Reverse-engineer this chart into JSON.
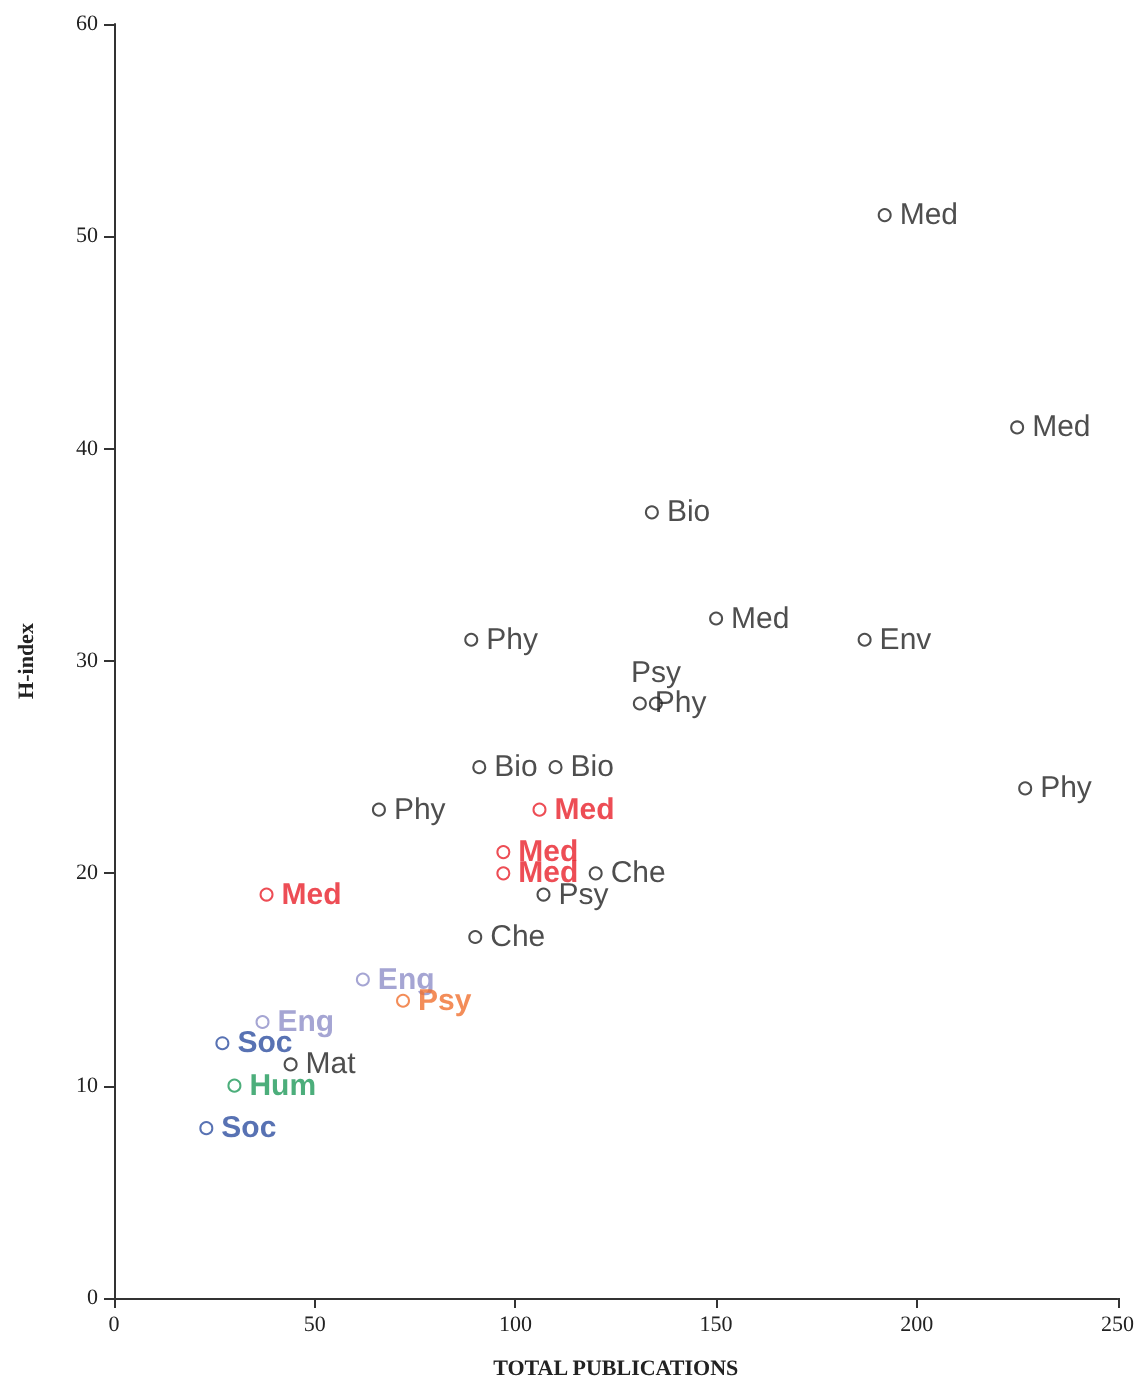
{
  "chart_data": {
    "type": "scatter",
    "xlabel": "TOTAL PUBLICATIONS",
    "ylabel": "H-index",
    "xlim": [
      0,
      250
    ],
    "xticks": [
      0,
      50,
      100,
      150,
      200,
      250
    ],
    "ylim": [
      0,
      60
    ],
    "yticks": [
      0,
      10,
      20,
      30,
      40,
      50,
      60
    ],
    "grid": false,
    "marker": "circle",
    "series": [
      {
        "color": "#222222",
        "x": [
          192,
          225,
          134,
          150,
          187,
          89,
          131,
          135,
          91,
          110,
          66,
          227,
          120,
          107,
          90,
          44
        ],
        "values": [
          51,
          41,
          37,
          32,
          31,
          31,
          28,
          28,
          25,
          25,
          23,
          24,
          20,
          19,
          17,
          11
        ],
        "value_labels": [
          "Med",
          "Med",
          "Bio",
          "Med",
          "Env",
          "Phy",
          "Phy",
          "Psy",
          "Bio",
          "Bio",
          "Phy",
          "Phy",
          "Che",
          "Psy",
          "Che",
          "Mat"
        ]
      },
      {
        "color": "#e8202a",
        "x": [
          106,
          97,
          97,
          38
        ],
        "values": [
          23,
          21,
          20,
          19
        ],
        "value_labels": [
          "Med",
          "Med",
          "Med",
          "Med"
        ]
      },
      {
        "color": "#8e8fc8",
        "x": [
          62,
          37
        ],
        "values": [
          15,
          13
        ],
        "value_labels": [
          "Eng",
          "Eng"
        ]
      },
      {
        "color": "#f07030",
        "x": [
          72
        ],
        "values": [
          14
        ],
        "value_labels": [
          "Psy"
        ]
      },
      {
        "color": "#2e4fa0",
        "x": [
          27,
          23
        ],
        "values": [
          12,
          8
        ],
        "value_labels": [
          "Soc",
          "Soc"
        ]
      },
      {
        "color": "#1f9a5a",
        "x": [
          30
        ],
        "values": [
          10
        ],
        "value_labels": [
          "Hum"
        ]
      }
    ]
  }
}
